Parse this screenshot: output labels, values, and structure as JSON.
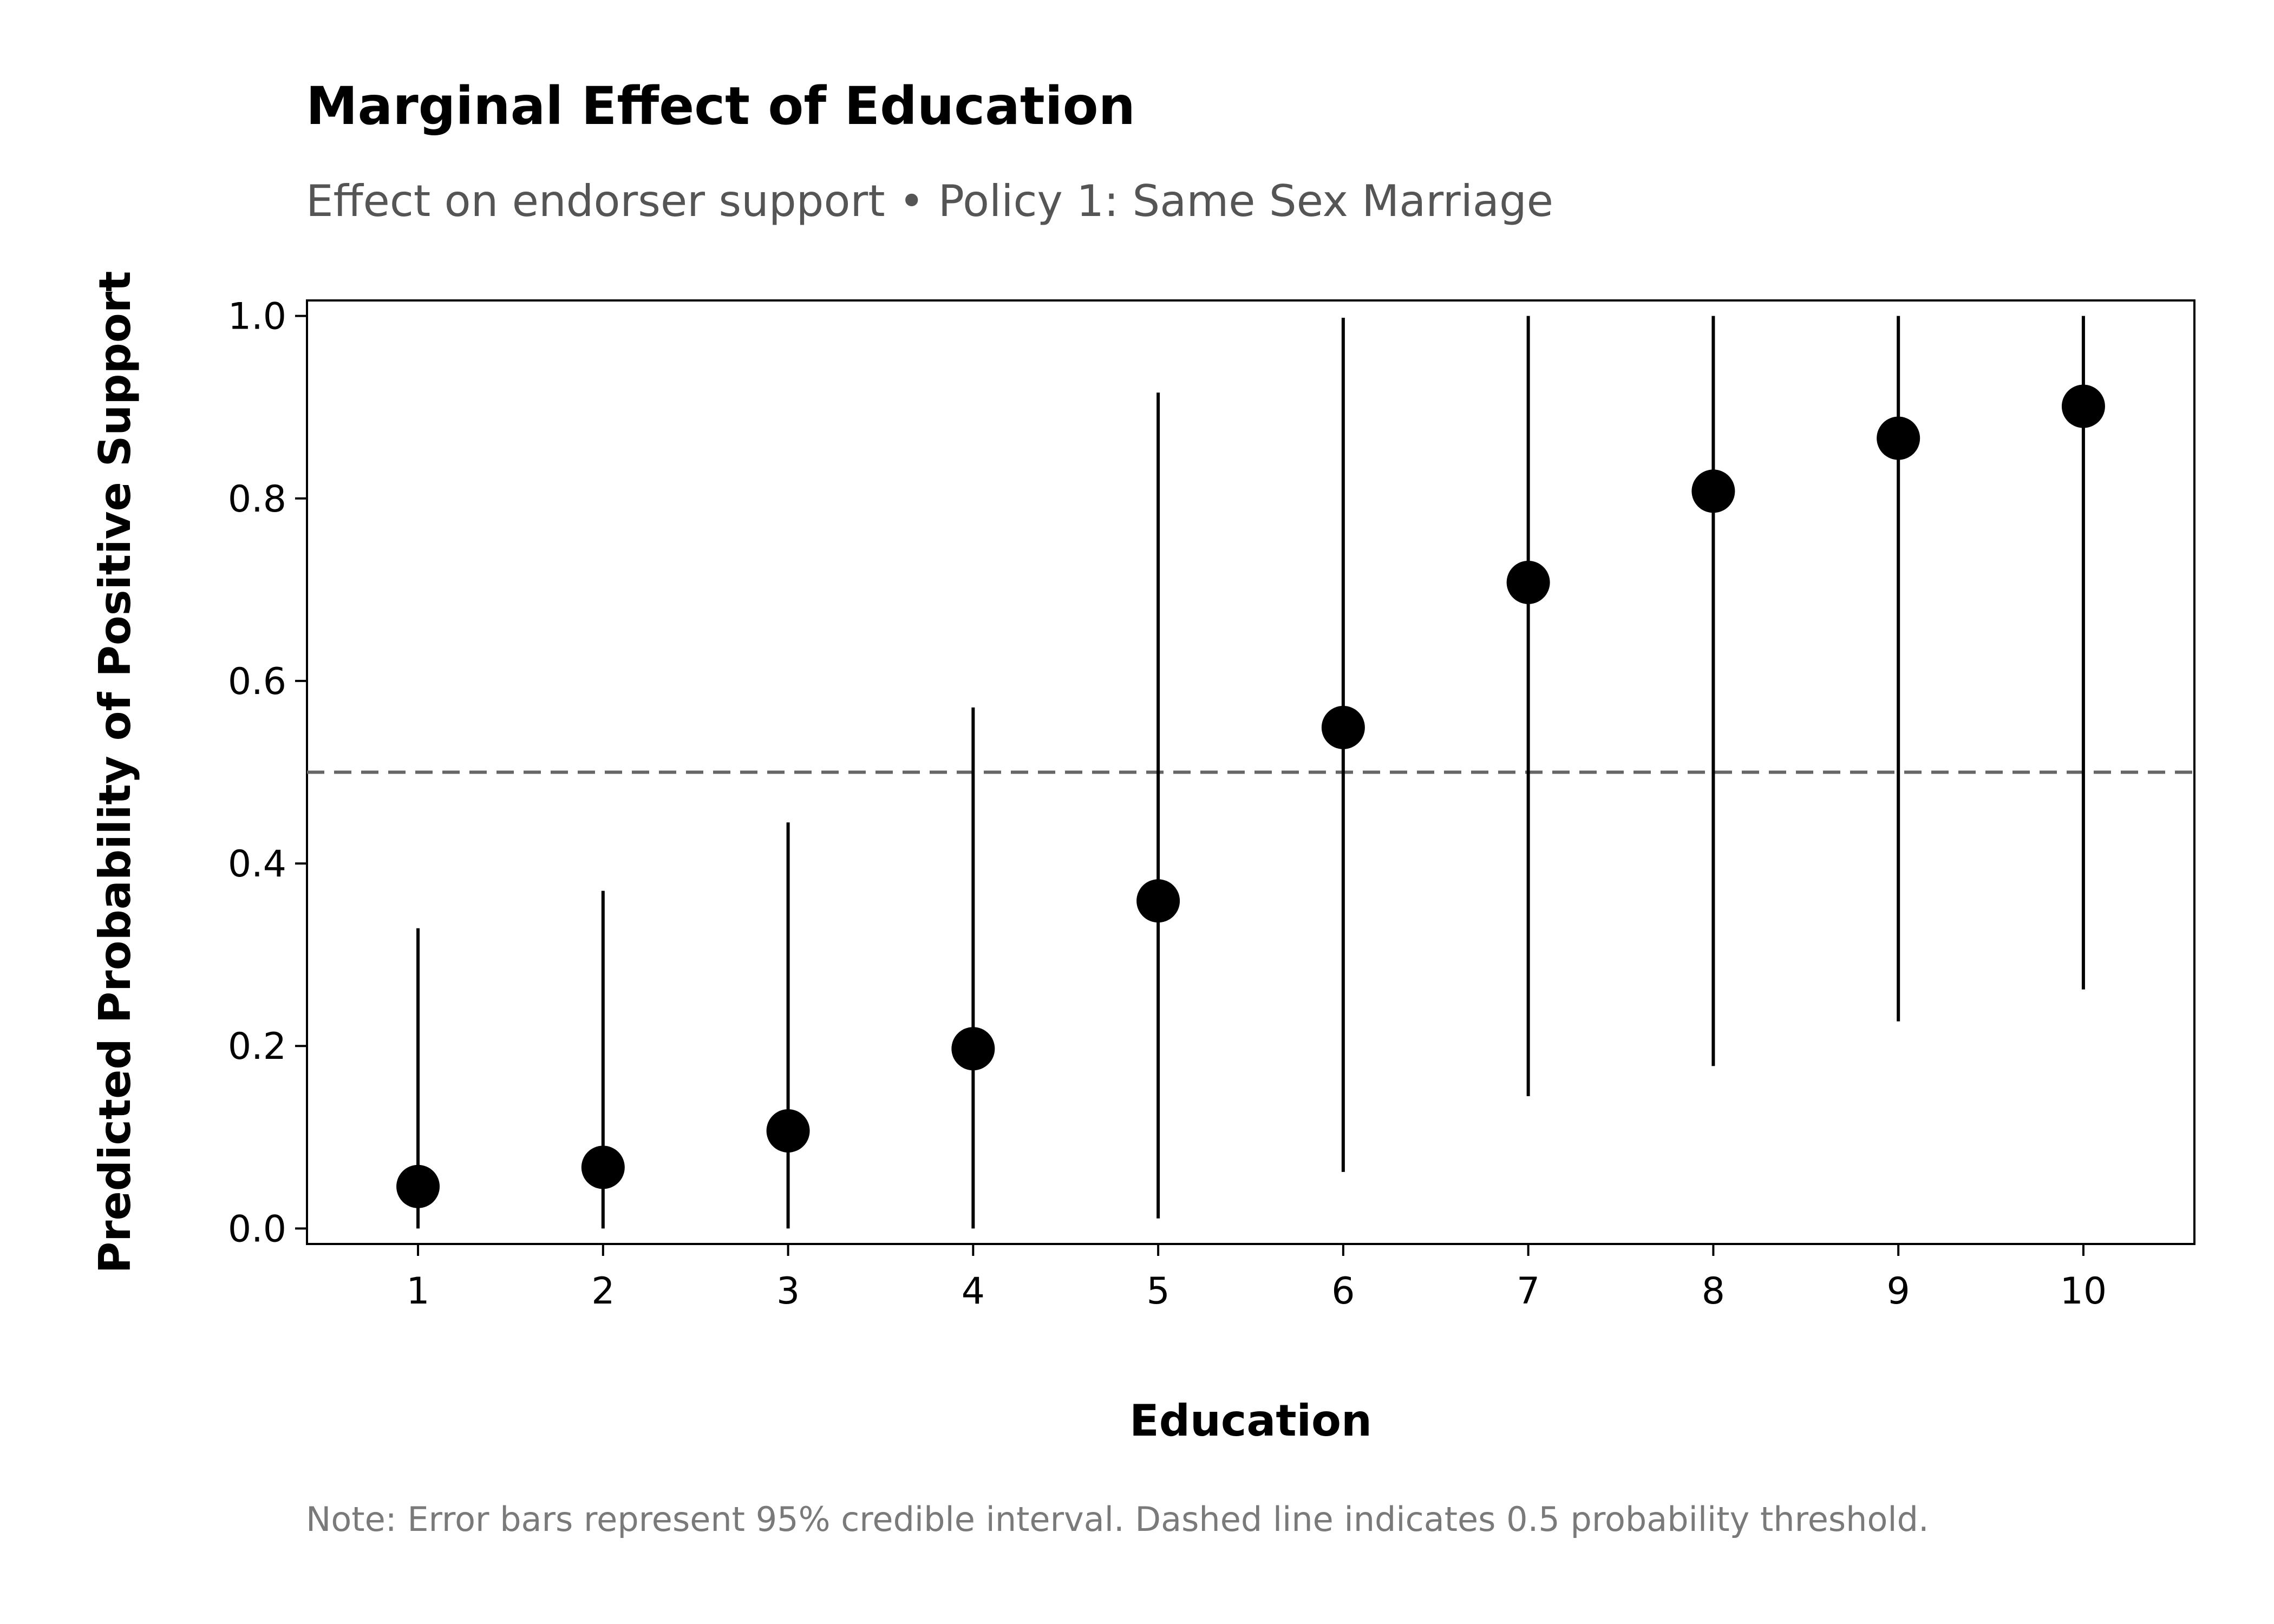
{
  "title": "Marginal Effect of Education",
  "subtitle": "Effect on endorser support • Policy 1: Same Sex Marriage",
  "note": "Note: Error bars represent 95% credible interval. Dashed line indicates 0.5 probability threshold.",
  "chart_data": {
    "type": "scatter",
    "title": "Marginal Effect of Education",
    "subtitle": "Effect on endorser support • Policy 1: Same Sex Marriage",
    "xlabel": "Education",
    "ylabel": "Predicted Probability of Positive Support",
    "x": [
      1,
      2,
      3,
      4,
      5,
      6,
      7,
      8,
      9,
      10
    ],
    "y": [
      0.046,
      0.067,
      0.107,
      0.197,
      0.359,
      0.549,
      0.708,
      0.808,
      0.866,
      0.901
    ],
    "lower": [
      0.0,
      0.0,
      0.0,
      0.0,
      0.011,
      0.062,
      0.145,
      0.178,
      0.227,
      0.262
    ],
    "upper": [
      0.329,
      0.37,
      0.445,
      0.571,
      0.916,
      0.998,
      1.0,
      1.0,
      1.0,
      1.0
    ],
    "reference_line": 0.5,
    "xticks": [
      "1",
      "2",
      "3",
      "4",
      "5",
      "6",
      "7",
      "8",
      "9",
      "10"
    ],
    "yticks": [
      "0.0",
      "0.2",
      "0.4",
      "0.6",
      "0.8",
      "1.0"
    ],
    "ylim": [
      -0.017,
      1.017
    ],
    "xlim": [
      0.4,
      10.6
    ],
    "grid": false,
    "colors": {
      "points": "#000000",
      "reference_line": "#666666"
    }
  }
}
